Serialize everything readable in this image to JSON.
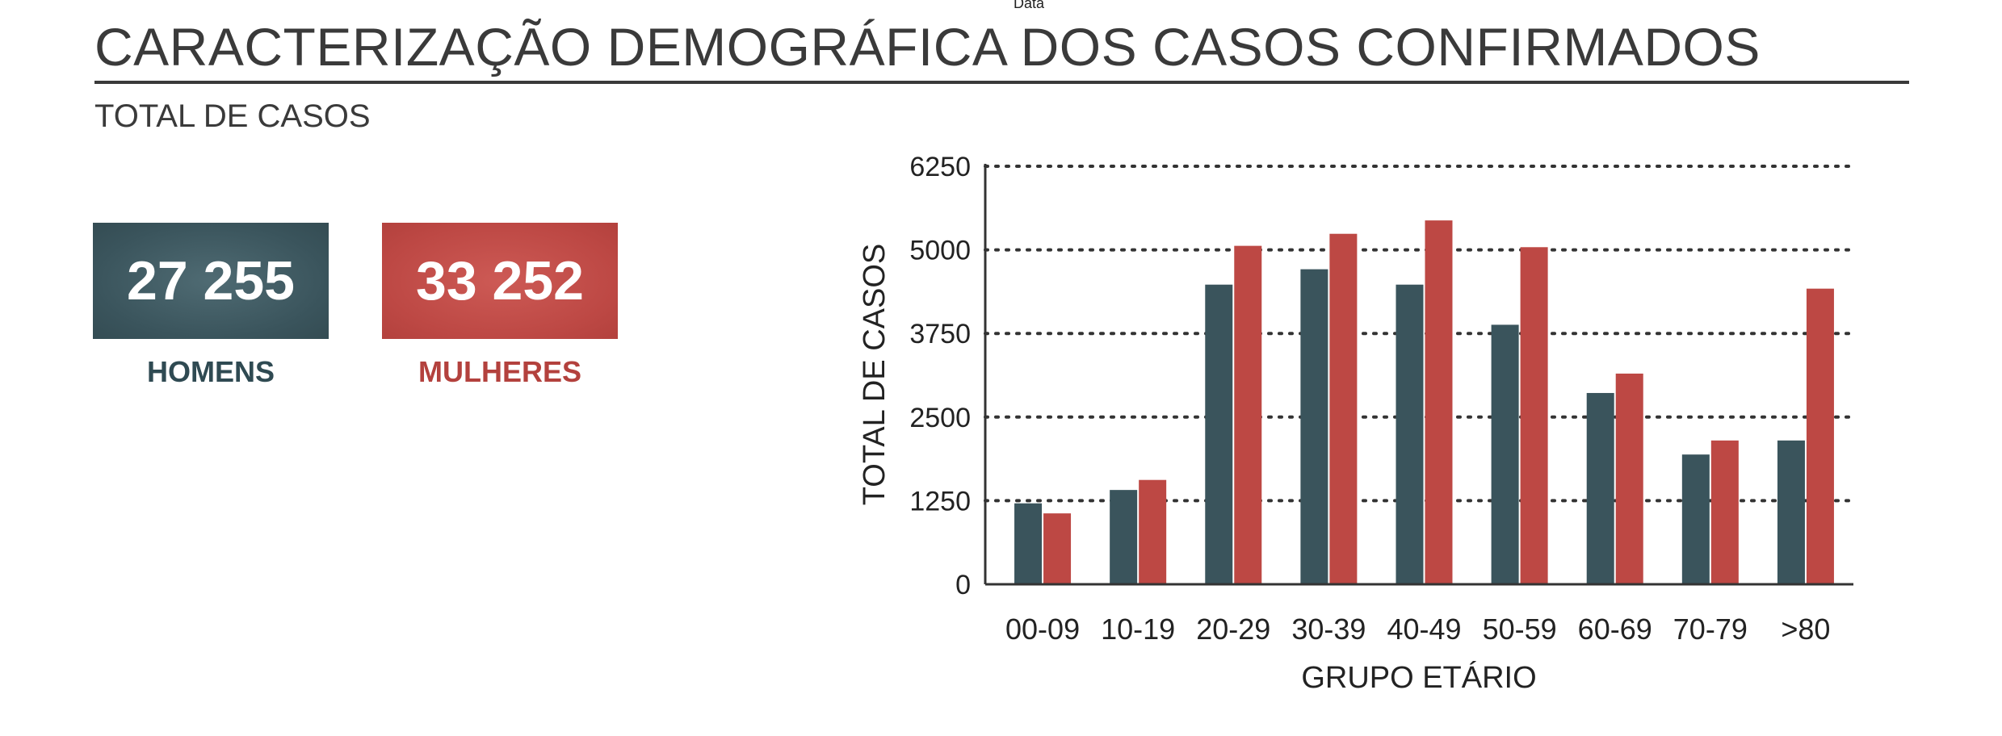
{
  "top_label": "Data",
  "header": {
    "title": "CARACTERIZAÇÃO DEMOGRÁFICA DOS CASOS CONFIRMADOS",
    "subtitle": "TOTAL DE CASOS"
  },
  "totals": {
    "men": {
      "value": "27 255",
      "label": "HOMENS",
      "color": "#3a545c"
    },
    "women": {
      "value": "33 252",
      "label": "MULHERES",
      "color": "#bd4844"
    }
  },
  "chart_data": {
    "type": "bar",
    "categories": [
      "00-09",
      "10-19",
      "20-29",
      "30-39",
      "40-49",
      "50-59",
      "60-69",
      "70-79",
      ">80"
    ],
    "series": [
      {
        "name": "HOMENS",
        "color": "#3a545c",
        "values": [
          1210,
          1410,
          4480,
          4710,
          4480,
          3880,
          2860,
          1940,
          2150
        ]
      },
      {
        "name": "MULHERES",
        "color": "#bd4844",
        "values": [
          1060,
          1560,
          5060,
          5240,
          5440,
          5040,
          3150,
          2150,
          4420
        ]
      }
    ],
    "xlabel": "GRUPO ETÁRIO",
    "ylabel": "TOTAL DE CASOS",
    "ylim": [
      0,
      6250
    ],
    "yticks": [
      "0",
      "1250",
      "2500",
      "3750",
      "5000",
      "6250"
    ],
    "grid": true,
    "legend": "none"
  }
}
